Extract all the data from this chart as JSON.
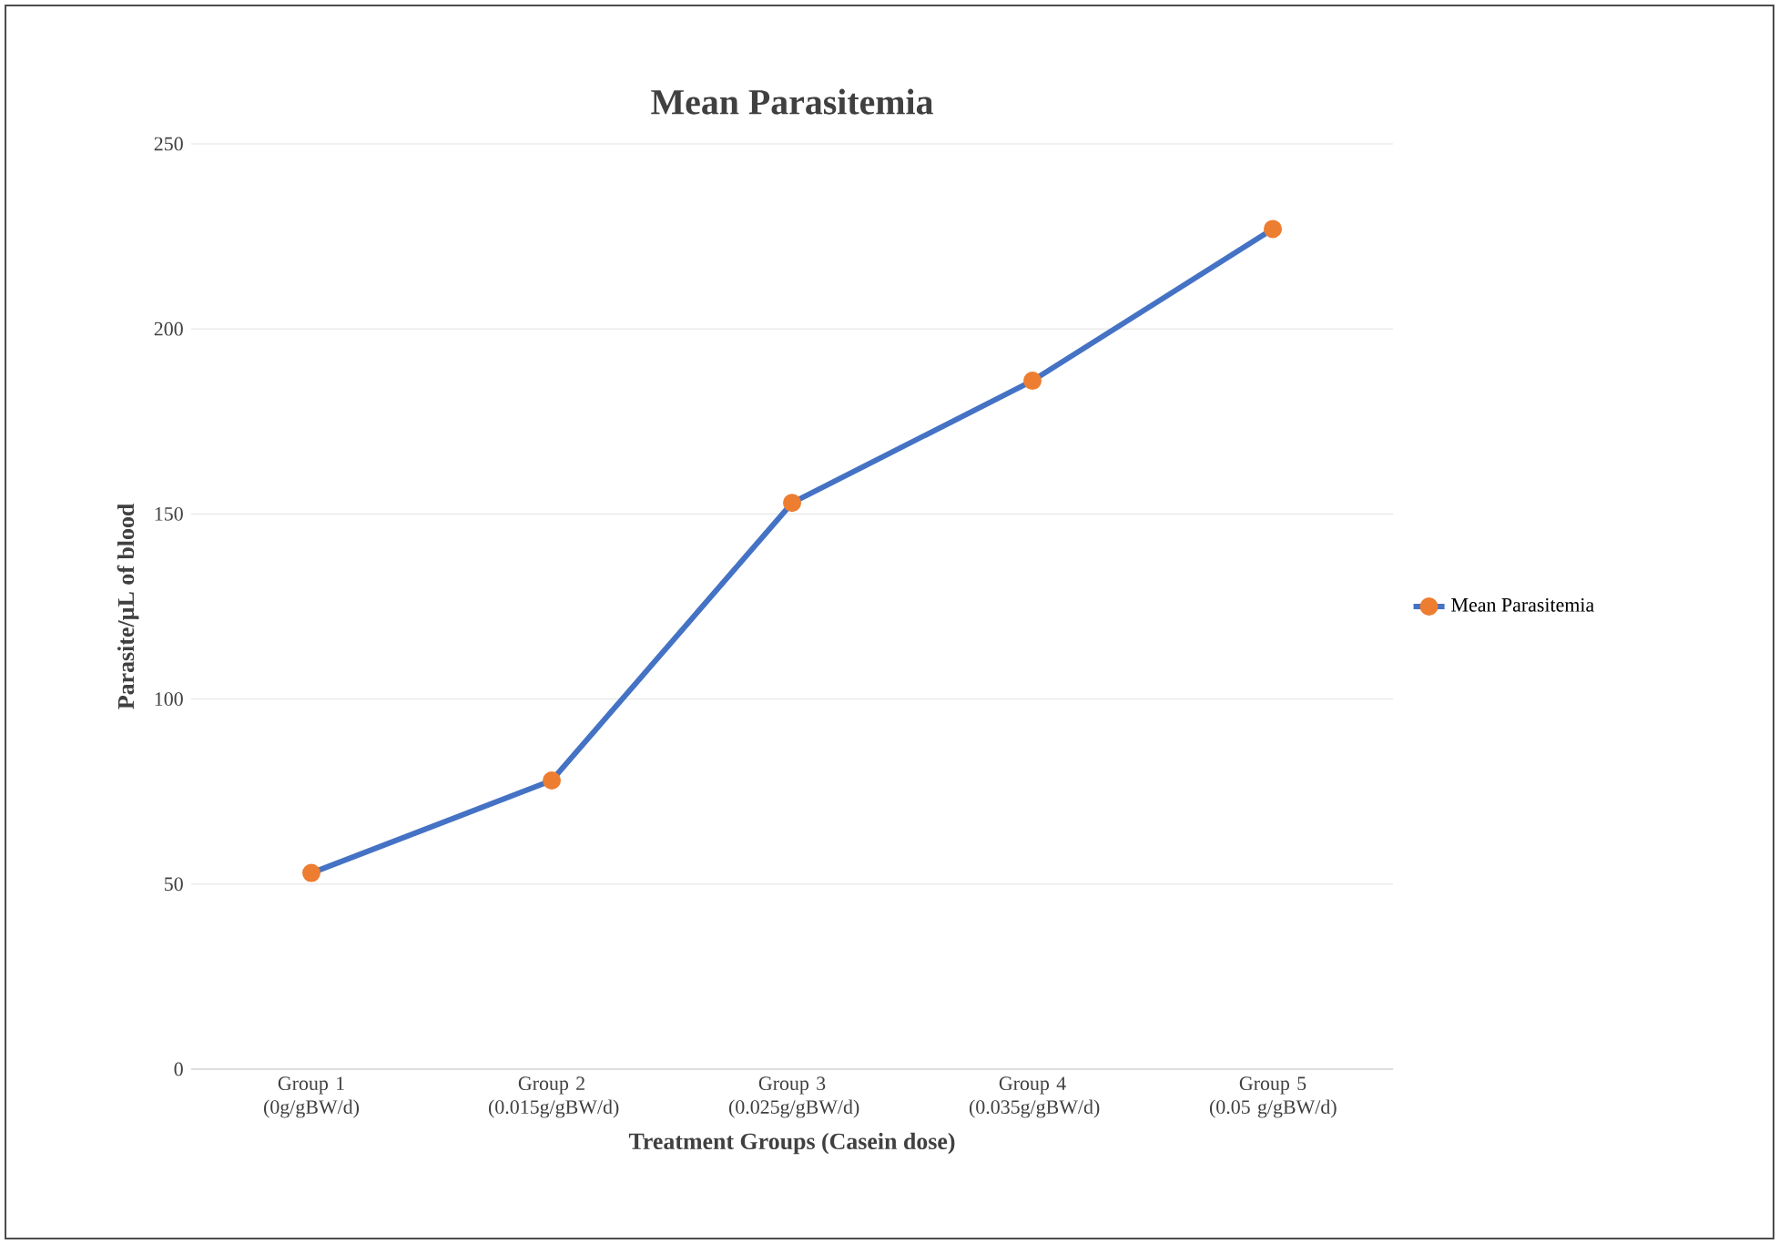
{
  "chart_data": {
    "type": "line",
    "title": "Mean Parasitemia",
    "xlabel": "Treatment Groups (Casein dose)",
    "ylabel": "Parasite/µL of blood",
    "categories": [
      "Group 1 (0g/gBW/d)",
      "Group 2 (0.015g/gBW/d)",
      "Group 3 (0.025g/gBW/d)",
      "Group 4 (0.035g/gBW/d)",
      "Group 5 (0.05 g/gBW/d)"
    ],
    "series": [
      {
        "name": "Mean Parasitemia",
        "color": "#4472c4",
        "colors": [
          "#ed7d31",
          "#ed7d31",
          "#ed7d31",
          "#ed7d31",
          "#ed7d31"
        ],
        "values": [
          53,
          78,
          153,
          186,
          227
        ]
      }
    ],
    "ylim": [
      0,
      250
    ],
    "yticks": [
      0,
      50,
      100,
      150,
      200,
      250
    ],
    "grid": "y",
    "legend": "right",
    "marker": "circle",
    "line_style": "solid"
  }
}
